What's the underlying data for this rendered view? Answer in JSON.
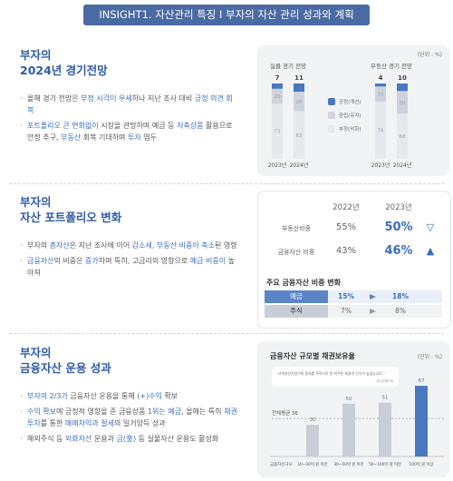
{
  "header": {
    "title": "INSIGHT1. 자산관리 특징 I 부자의 자산 관리 성과와 계획"
  },
  "sections": [
    {
      "title": [
        "부자의",
        "2024년 경기전망"
      ],
      "bullets": [
        [
          {
            "text": "올해 경기 전망은 "
          },
          {
            "text": "부정 시각이 우세",
            "em": true
          },
          {
            "text": "하나 지난 조사 대비 "
          },
          {
            "text": "긍정 의견 회복",
            "em": true
          }
        ],
        [
          {
            "text": "포트폴리오 큰 변화없이",
            "em": true
          },
          {
            "text": " 시장을 관망하며 예금 등 "
          },
          {
            "text": "저축상품",
            "em": true
          },
          {
            "text": " 활용으로 안정 추구, "
          },
          {
            "text": "부동산",
            "em": true
          },
          {
            "text": " 회복 기대하며 "
          },
          {
            "text": "투자",
            "em": true
          },
          {
            "text": " 염두"
          }
        ]
      ]
    },
    {
      "title": [
        "부자의",
        "자산 포트폴리오 변화"
      ],
      "bullets": [
        [
          {
            "text": "부자의 "
          },
          {
            "text": "총자산",
            "em": true
          },
          {
            "text": "은 지난 조사에 이어 "
          },
          {
            "text": "감소세",
            "em": true
          },
          {
            "text": ", "
          },
          {
            "text": "부동산 비중이 축소",
            "em": true
          },
          {
            "text": "된 영향"
          }
        ],
        [
          {
            "text": "금융자산",
            "em": true
          },
          {
            "text": "의 비중은 "
          },
          {
            "text": "증가",
            "em": true
          },
          {
            "text": "하며 특히, 고금리의 영향으로 "
          },
          {
            "text": "예금 비중이",
            "em": true
          },
          {
            "text": " 높아져"
          }
        ]
      ]
    },
    {
      "title": [
        "부자의",
        "금융자산 운용 성과"
      ],
      "bullets": [
        [
          {
            "text": "부자의 2/3가",
            "em": true
          },
          {
            "text": " 금융자산 운용을 통해 "
          },
          {
            "text": "(+)수익",
            "em": true
          },
          {
            "text": " 확보"
          }
        ],
        [
          {
            "text": "수익 확보",
            "em": true
          },
          {
            "text": "에 긍정적 영향을 준 금융상품 "
          },
          {
            "text": "1위는 예금",
            "em": true
          },
          {
            "text": ", 올해는 특히 "
          },
          {
            "text": "채권투자",
            "em": true
          },
          {
            "text": "를 통한 "
          },
          {
            "text": "매매차익과 절세",
            "em": true
          },
          {
            "text": "의 일거양득 성과"
          }
        ],
        [
          {
            "text": "해외주식 등 "
          },
          {
            "text": "외화자산",
            "em": true
          },
          {
            "text": " 운용과 "
          },
          {
            "text": "금(金)",
            "em": true
          },
          {
            "text": " 등 실물자산 운용도 활성화"
          }
        ]
      ]
    }
  ],
  "table": {
    "columns": [
      "2022년",
      "2023년"
    ],
    "rows": [
      {
        "label": "부동산비중",
        "values": [
          "55%",
          "50%"
        ],
        "trend": "▽"
      },
      {
        "label": "금융자산 비중",
        "values": [
          "43%",
          "46%"
        ],
        "trend": "▲"
      }
    ],
    "subtitle": "주요 금융자산 비중 변화",
    "subrows": [
      [
        "예금",
        "15%",
        "18%"
      ],
      [
        "주식",
        "7%",
        "8%"
      ]
    ]
  },
  "chart_data": [
    {
      "type": "stacked_bar",
      "unit": "(단위 : %)",
      "groups": [
        "실물 경기 전망",
        "부동산 경기 전망"
      ],
      "categories": [
        "2023년",
        "2024년",
        "2023년",
        "2024년"
      ],
      "series": [
        {
          "name": "긍정(개선)",
          "color": "#4a78c0",
          "values": [
            7,
            11,
            4,
            10
          ]
        },
        {
          "name": "중립(유지)",
          "color": "#cfd4dc",
          "values": [
            20,
            26,
            20,
            30
          ]
        },
        {
          "name": "부정(악화)",
          "color": "#e6e8ec",
          "values": [
            73,
            63,
            76,
            60
          ]
        }
      ],
      "ylim": [
        0,
        100
      ]
    },
    {
      "type": "bar",
      "title": "금융자산 규모별 채권보유율",
      "unit": "(단위 : %)",
      "quote": "“고액자산가일수록 절세를 목적으로 한 저쿠폰 채권의 인기가 높았습니다.”",
      "source": "- 하나은행 PB",
      "x_label": "금융자산규모",
      "categories": [
        "10~30억 원 미만",
        "30~50억 원 미만",
        "50~100억 원 미만",
        "100억 원 이상"
      ],
      "values": [
        30,
        50,
        51,
        67
      ],
      "colors": [
        "#c9ced6",
        "#c9ced6",
        "#c9ced6",
        "#4a78c0"
      ],
      "average": {
        "label": "전체평균 36",
        "value": 36
      },
      "ylim": [
        0,
        80
      ]
    }
  ]
}
